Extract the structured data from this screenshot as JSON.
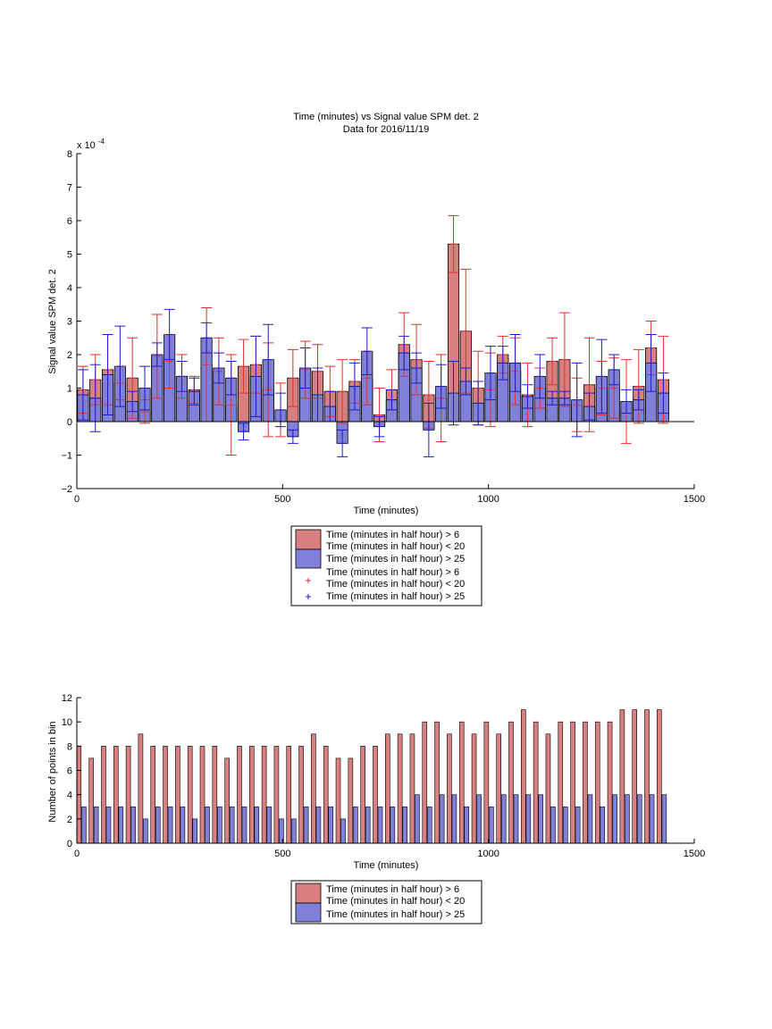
{
  "chart_data": [
    {
      "type": "bar",
      "title": "Time (minutes) vs Signal value SPM det. 2",
      "subtitle": "Data for 2016/11/19",
      "xlabel": "Time (minutes)",
      "ylabel": "Signal value SPM det. 2",
      "xlim": [
        0,
        1500
      ],
      "ylim": [
        -2,
        8
      ],
      "y_multiplier": "x 10",
      "y_multiplier_exp": "-4",
      "xticks": [
        "0",
        "500",
        "1000",
        "1500"
      ],
      "yticks": [
        "−2",
        "−1",
        "0",
        "1",
        "2",
        "3",
        "4",
        "5",
        "6",
        "7",
        "8"
      ],
      "grid": false,
      "legend": {
        "position": "below",
        "entries": [
          "Time (minutes in half hour) > 6",
          "Time (minutes in half hour) < 20",
          "Time (minutes in half hour) > 25",
          "Time (minutes in half hour) > 6",
          "Time (minutes in half hour) < 20",
          "Time (minutes in half hour) > 25"
        ]
      },
      "colors": {
        "red_bar": "#d88080",
        "blue_bar": "#8080d8",
        "red_err": "#e03030",
        "blue_err": "#1a1ad0"
      },
      "series": [
        {
          "name": "Time (minutes in half hour) > 6 / < 20",
          "x": [
            15,
            45,
            75,
            105,
            135,
            165,
            195,
            225,
            255,
            285,
            315,
            345,
            375,
            405,
            435,
            465,
            495,
            525,
            555,
            585,
            615,
            645,
            675,
            705,
            735,
            765,
            795,
            825,
            855,
            885,
            915,
            945,
            975,
            1005,
            1035,
            1065,
            1095,
            1125,
            1155,
            1185,
            1215,
            1245,
            1275,
            1305,
            1335,
            1365,
            1395,
            1425
          ],
          "values": [
            0.95,
            1.25,
            1.55,
            1.15,
            1.3,
            0.3,
            1.95,
            1.8,
            1.35,
            0.95,
            1.7,
            1.5,
            0.5,
            1.65,
            1.7,
            0.95,
            0.35,
            1.3,
            1.55,
            1.5,
            0.9,
            0.9,
            1.2,
            1.3,
            0.2,
            0.95,
            2.3,
            1.85,
            0.8,
            0.7,
            5.3,
            2.7,
            1.0,
            0.95,
            2.0,
            1.5,
            0.8,
            1.0,
            1.8,
            1.85,
            0.5,
            1.1,
            1.0,
            1.0,
            0.6,
            1.05,
            2.2,
            1.25
          ],
          "err": [
            0.7,
            0.75,
            1.05,
            0.5,
            1.2,
            0.35,
            1.25,
            0.8,
            0.65,
            0.4,
            1.7,
            1.0,
            1.5,
            0.8,
            0.85,
            1.4,
            0.8,
            0.85,
            0.85,
            0.8,
            0.75,
            0.95,
            0.65,
            0.8,
            0.8,
            0.6,
            0.95,
            1.05,
            1.0,
            1.3,
            0.85,
            1.85,
            1.1,
            1.1,
            0.55,
            1.0,
            0.95,
            0.6,
            0.7,
            1.4,
            0.8,
            1.4,
            0.8,
            0.9,
            1.25,
            1.1,
            0.8,
            1.3
          ]
        },
        {
          "name": "Time (minutes in half hour) > 25",
          "x": [
            15,
            45,
            75,
            105,
            135,
            165,
            195,
            225,
            255,
            285,
            315,
            345,
            375,
            405,
            435,
            465,
            495,
            525,
            555,
            585,
            615,
            645,
            675,
            705,
            735,
            765,
            795,
            825,
            855,
            885,
            915,
            945,
            975,
            1005,
            1035,
            1065,
            1095,
            1125,
            1155,
            1185,
            1215,
            1245,
            1275,
            1305,
            1335,
            1365,
            1395,
            1425
          ],
          "values": [
            0.8,
            0.7,
            1.4,
            1.65,
            0.6,
            1.0,
            2.0,
            2.6,
            1.35,
            0.9,
            2.5,
            1.6,
            1.3,
            -0.3,
            1.35,
            1.85,
            0.35,
            -0.45,
            1.6,
            0.8,
            0.45,
            -0.65,
            1.05,
            2.1,
            -0.15,
            0.65,
            2.05,
            1.6,
            -0.25,
            1.05,
            0.85,
            1.2,
            0.55,
            1.45,
            1.75,
            1.75,
            0.75,
            1.35,
            0.7,
            0.7,
            0.65,
            0.45,
            1.35,
            1.55,
            0.6,
            0.65,
            1.75,
            0.85
          ],
          "err": [
            0.75,
            1.0,
            1.2,
            1.2,
            0.3,
            0.65,
            0.35,
            0.75,
            0.45,
            0.4,
            0.45,
            0.45,
            0.5,
            0.25,
            1.2,
            1.05,
            0.5,
            0.2,
            0.6,
            0.8,
            0.45,
            0.4,
            0.7,
            0.7,
            0.3,
            0.3,
            0.5,
            0.45,
            0.8,
            0.65,
            0.95,
            0.4,
            0.65,
            0.8,
            0.5,
            0.85,
            0.35,
            0.65,
            0.2,
            0.2,
            1.1,
            0.4,
            1.1,
            0.45,
            0.35,
            0.3,
            0.85,
            0.6
          ]
        }
      ]
    },
    {
      "type": "bar",
      "title": "",
      "xlabel": "Time (minutes)",
      "ylabel": "Number of points in bin",
      "xlim": [
        0,
        1500
      ],
      "ylim": [
        0,
        12
      ],
      "xticks": [
        "0",
        "500",
        "1000",
        "1500"
      ],
      "yticks": [
        "0",
        "2",
        "4",
        "6",
        "8",
        "10",
        "12"
      ],
      "grid": false,
      "legend": {
        "position": "below",
        "entries": [
          "Time (minutes in half hour) > 6",
          "Time (minutes in half hour) < 20",
          "Time (minutes in half hour) > 25"
        ]
      },
      "series": [
        {
          "name": "Time (minutes in half hour) > 6 / < 20",
          "x": [
            5,
            35,
            65,
            95,
            125,
            155,
            185,
            215,
            245,
            275,
            305,
            335,
            365,
            395,
            425,
            455,
            485,
            515,
            545,
            575,
            605,
            635,
            665,
            695,
            725,
            755,
            785,
            815,
            845,
            875,
            905,
            935,
            965,
            995,
            1025,
            1055,
            1085,
            1115,
            1145,
            1175,
            1205,
            1235,
            1265,
            1295,
            1325,
            1355,
            1385,
            1415
          ],
          "values": [
            8,
            7,
            8,
            8,
            8,
            9,
            8,
            8,
            8,
            8,
            8,
            8,
            7,
            8,
            8,
            8,
            8,
            8,
            8,
            9,
            8,
            7,
            7,
            8,
            8,
            9,
            9,
            9,
            10,
            10,
            9,
            10,
            9,
            10,
            9,
            10,
            11,
            10,
            9,
            10,
            10,
            10,
            10,
            10,
            11,
            11,
            11,
            11
          ]
        },
        {
          "name": "Time (minutes in half hour) > 25",
          "x": [
            17,
            47,
            77,
            107,
            137,
            167,
            197,
            227,
            257,
            287,
            317,
            347,
            377,
            407,
            437,
            467,
            497,
            527,
            557,
            587,
            617,
            647,
            677,
            707,
            737,
            767,
            797,
            827,
            857,
            887,
            917,
            947,
            977,
            1007,
            1037,
            1067,
            1097,
            1127,
            1157,
            1187,
            1217,
            1247,
            1277,
            1307,
            1337,
            1367,
            1397,
            1427
          ],
          "values": [
            3,
            3,
            3,
            3,
            3,
            2,
            3,
            3,
            3,
            2,
            3,
            3,
            3,
            3,
            3,
            3,
            2,
            2,
            3,
            3,
            3,
            2,
            3,
            3,
            3,
            3,
            3,
            4,
            3,
            4,
            4,
            3,
            4,
            3,
            4,
            4,
            4,
            4,
            3,
            3,
            3,
            4,
            3,
            4,
            4,
            4,
            4,
            4
          ]
        }
      ]
    }
  ]
}
